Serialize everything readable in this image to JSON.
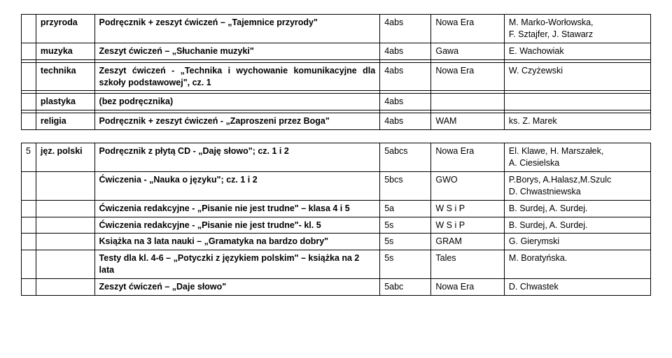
{
  "t1": {
    "r0": {
      "subj": "przyroda",
      "book": "Podręcznik + zeszyt ćwiczeń – „Tajemnice przyrody\"",
      "cls": "4abs",
      "pub": "Nowa Era",
      "auth": "M. Marko-Worłowska,\nF. Sztajfer, J. Stawarz"
    },
    "r1": {
      "subj": "muzyka",
      "book": "Zeszyt ćwiczeń – „Słuchanie muzyki\"",
      "cls": "4abs",
      "pub": "Gawa",
      "auth": "E. Wachowiak"
    },
    "r2": {
      "subj": "technika",
      "book": "Zeszyt ćwiczeń - „Technika i wychowanie komunikacyjne dla szkoły podstawowej\", cz. 1",
      "cls": "4abs",
      "pub": "Nowa Era",
      "auth": "W. Czyżewski"
    },
    "r3": {
      "subj": "plastyka",
      "book": "(bez podręcznika)",
      "cls": "4abs",
      "pub": "",
      "auth": ""
    },
    "r4": {
      "subj": "religia",
      "book": "Podręcznik + zeszyt ćwiczeń - „Zaproszeni przez Boga\"",
      "cls": "4abs",
      "pub": "WAM",
      "auth": "ks. Z. Marek"
    }
  },
  "t2": {
    "r0": {
      "idx": "5",
      "subj": "jęz. polski",
      "book": "Podręcznik z płytą CD - „Daję słowo\"; cz. 1 i 2",
      "cls": "5abcs",
      "pub": "Nowa Era",
      "auth": "El. Klawe, H. Marszałek,\nA. Ciesielska"
    },
    "r1": {
      "book": "Ćwiczenia - „Nauka o języku\"; cz. 1 i 2",
      "cls": "5bcs",
      "pub": "GWO",
      "auth": "P.Borys, A.Halasz,M.Szulc\nD. Chwastniewska"
    },
    "r2": {
      "book": "Ćwiczenia redakcyjne - „Pisanie nie jest trudne\" – klasa 4 i 5",
      "cls": "5a",
      "pub": "W S i P",
      "auth": "B. Surdej, A. Surdej."
    },
    "r3": {
      "book": "Ćwiczenia redakcyjne - „Pisanie nie jest trudne\"- kl. 5",
      "cls": "5s",
      "pub": "W S i P",
      "auth": "B. Surdej, A. Surdej."
    },
    "r4": {
      "book": "Książka na 3 lata nauki – „Gramatyka na bardzo dobry\"",
      "cls": "5s",
      "pub": "GRAM",
      "auth": "G. Gierymski"
    },
    "r5": {
      "book": "Testy dla kl. 4-6 – „Potyczki z językiem polskim\" – książka na 2 lata",
      "cls": "5s",
      "pub": "Tales",
      "auth": "M. Boratyńska."
    },
    "r6": {
      "book": "Zeszyt ćwiczeń – „Daje słowo\"",
      "cls": "5abc",
      "pub": "Nowa Era",
      "auth": "D. Chwastek"
    }
  }
}
